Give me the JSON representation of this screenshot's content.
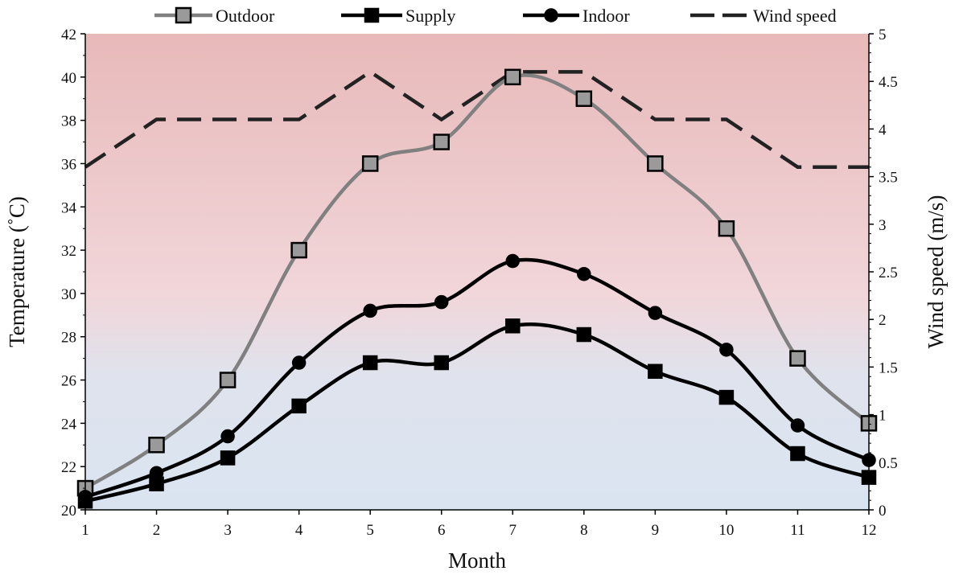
{
  "chart_data": {
    "type": "line",
    "x": [
      1,
      2,
      3,
      4,
      5,
      6,
      7,
      8,
      9,
      10,
      11,
      12
    ],
    "xlabel": "Month",
    "ylabel_left": "Temperature (˚C)",
    "ylabel_right": "Wind speed  (m/s)",
    "ylim_left": [
      20,
      42
    ],
    "yticks_left": [
      20,
      22,
      24,
      26,
      28,
      30,
      32,
      34,
      36,
      38,
      40,
      42
    ],
    "ylim_right": [
      0,
      5
    ],
    "yticks_right": [
      "0",
      "0.5",
      "1",
      "1.5",
      "2",
      "2.5",
      "3",
      "3.5",
      "4",
      "4.5",
      "5"
    ],
    "xticks": [
      "1",
      "2",
      "3",
      "4",
      "5",
      "6",
      "7",
      "8",
      "9",
      "10",
      "11",
      "12"
    ],
    "legend_position": "top",
    "background": "vertical gradient, pink/red at top to light blue at bottom",
    "series": [
      {
        "name": "Outdoor",
        "axis": "left",
        "marker": "square",
        "color": "#808080",
        "marker_fill": "#9a9a9a",
        "values": [
          21.0,
          23.0,
          26.0,
          32.0,
          36.0,
          37.0,
          40.0,
          39.0,
          36.0,
          33.0,
          27.0,
          24.0
        ]
      },
      {
        "name": "Supply",
        "axis": "left",
        "marker": "square",
        "color": "#000000",
        "marker_fill": "#000000",
        "values": [
          20.4,
          21.2,
          22.4,
          24.8,
          26.8,
          26.8,
          28.5,
          28.1,
          26.4,
          25.2,
          22.6,
          21.5
        ]
      },
      {
        "name": "Indoor",
        "axis": "left",
        "marker": "circle",
        "color": "#000000",
        "marker_fill": "#000000",
        "values": [
          20.6,
          21.7,
          23.4,
          26.8,
          29.2,
          29.6,
          31.5,
          30.9,
          29.1,
          27.4,
          23.9,
          22.3
        ]
      },
      {
        "name": "Wind speed",
        "axis": "right",
        "marker": "none",
        "color": "#222222",
        "dashed": true,
        "values": [
          3.6,
          4.1,
          4.1,
          4.1,
          4.6,
          4.1,
          4.6,
          4.6,
          4.1,
          4.1,
          3.6,
          3.6
        ]
      }
    ]
  }
}
